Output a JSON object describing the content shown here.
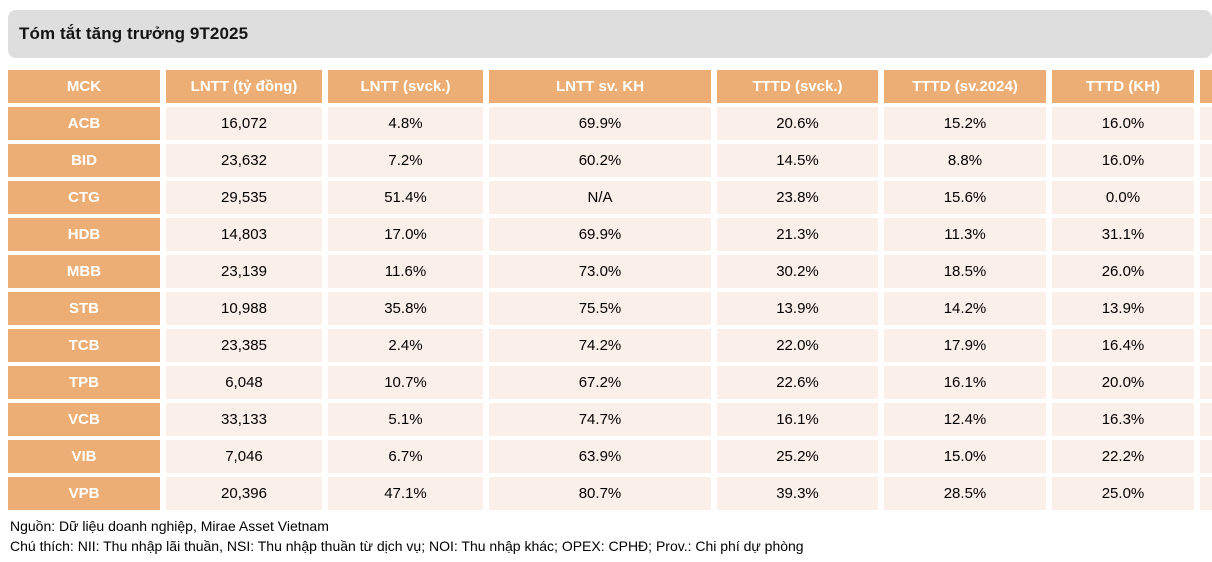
{
  "title": "Tóm tắt tăng trưởng 9T2025",
  "table": {
    "columns": [
      "MCK",
      "LNTT (tỷ đồng)",
      "LNTT (svck.)",
      "LNTT sv. KH",
      "TTTD (svck.)",
      "TTTD (sv.2024)",
      "TTTD (KH)"
    ],
    "clipped_column_label": "",
    "rows": [
      {
        "ticker": "ACB",
        "values": [
          "16,072",
          "4.8%",
          "69.9%",
          "20.6%",
          "15.2%",
          "16.0%"
        ]
      },
      {
        "ticker": "BID",
        "values": [
          "23,632",
          "7.2%",
          "60.2%",
          "14.5%",
          "8.8%",
          "16.0%"
        ]
      },
      {
        "ticker": "CTG",
        "values": [
          "29,535",
          "51.4%",
          "N/A",
          "23.8%",
          "15.6%",
          "0.0%"
        ]
      },
      {
        "ticker": "HDB",
        "values": [
          "14,803",
          "17.0%",
          "69.9%",
          "21.3%",
          "11.3%",
          "31.1%"
        ]
      },
      {
        "ticker": "MBB",
        "values": [
          "23,139",
          "11.6%",
          "73.0%",
          "30.2%",
          "18.5%",
          "26.0%"
        ]
      },
      {
        "ticker": "STB",
        "values": [
          "10,988",
          "35.8%",
          "75.5%",
          "13.9%",
          "14.2%",
          "13.9%"
        ]
      },
      {
        "ticker": "TCB",
        "values": [
          "23,385",
          "2.4%",
          "74.2%",
          "22.0%",
          "17.9%",
          "16.4%"
        ]
      },
      {
        "ticker": "TPB",
        "values": [
          "6,048",
          "10.7%",
          "67.2%",
          "22.6%",
          "16.1%",
          "20.0%"
        ]
      },
      {
        "ticker": "VCB",
        "values": [
          "33,133",
          "5.1%",
          "74.7%",
          "16.1%",
          "12.4%",
          "16.3%"
        ]
      },
      {
        "ticker": "VIB",
        "values": [
          "7,046",
          "6.7%",
          "63.9%",
          "25.2%",
          "15.0%",
          "22.2%"
        ]
      },
      {
        "ticker": "VPB",
        "values": [
          "20,396",
          "47.1%",
          "80.7%",
          "39.3%",
          "28.5%",
          "25.0%"
        ]
      }
    ]
  },
  "footnotes": {
    "source": "Nguồn: Dữ liệu doanh nghiệp, Mirae Asset Vietnam",
    "legend": "Chú thích: NII: Thu nhập lãi thuần, NSI: Thu nhập thuần từ dịch vụ; NOI: Thu nhập khác;  OPEX: CPHĐ; Prov.: Chi phí dự phòng"
  },
  "colors": {
    "header_bg": "#ECAE74",
    "row_bg": "#FBEFE9",
    "title_bar_bg": "#DEDEDE",
    "header_text": "#FFFFFF",
    "cell_text": "#000000"
  }
}
